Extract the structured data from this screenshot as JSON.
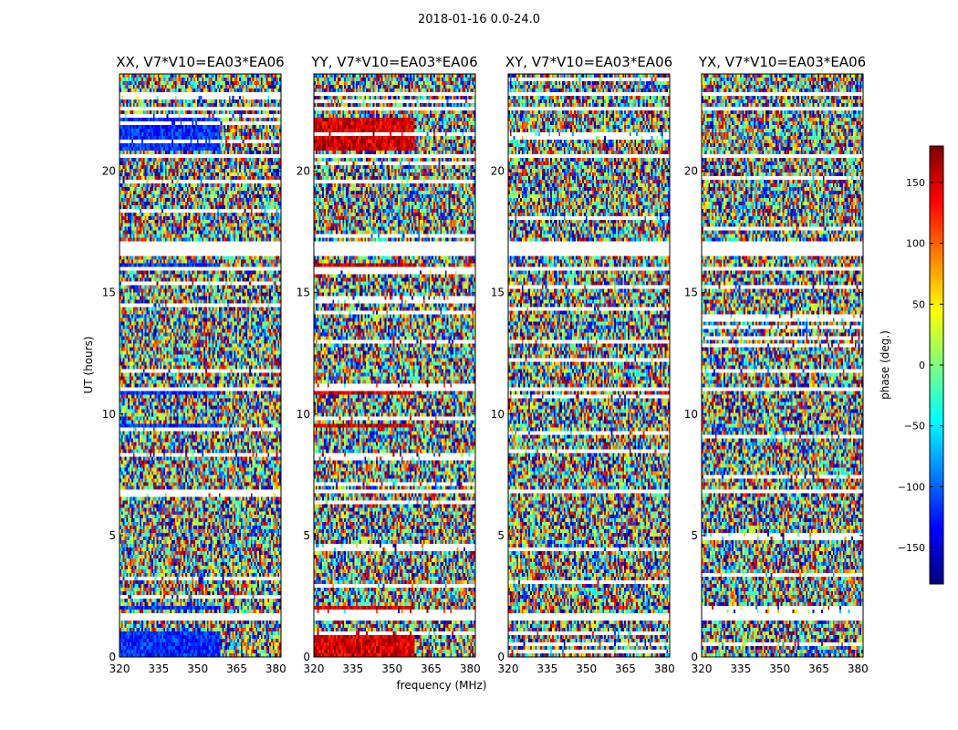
{
  "chart_data": {
    "type": "heatmap",
    "suptitle": "2018-01-16 0.0-24.0",
    "xlabel": "frequency (MHz)",
    "ylabel": "UT (hours)",
    "xlim": [
      320,
      382
    ],
    "ylim": [
      0,
      24
    ],
    "xticks": [
      320,
      335,
      350,
      365,
      380
    ],
    "yticks": [
      0,
      5,
      10,
      15,
      20
    ],
    "colorbar": {
      "label": "phase (deg.)",
      "range": [
        -180,
        180
      ],
      "ticks": [
        150,
        100,
        50,
        0,
        -50,
        -100,
        -150
      ],
      "colormap": "jet",
      "colors": [
        "#00007f",
        "#0000ff",
        "#007fff",
        "#00ffff",
        "#7fff7f",
        "#ffff00",
        "#ff7f00",
        "#ff0000",
        "#7f0000"
      ]
    },
    "panels": [
      {
        "title": "XX, V7*V10=EA03*EA06",
        "coherent_phase": -120,
        "show_ylabels": true
      },
      {
        "title": "YY, V7*V10=EA03*EA06",
        "coherent_phase": 150,
        "show_ylabels": true
      },
      {
        "title": "XY, V7*V10=EA03*EA06",
        "coherent_phase": null,
        "show_ylabels": true
      },
      {
        "title": "YX, V7*V10=EA03*EA06",
        "coherent_phase": null,
        "show_ylabels": true
      }
    ],
    "flagged_hours": [
      [
        1.45,
        1.85
      ],
      [
        2.08,
        2.14
      ],
      [
        6.75,
        6.85
      ],
      [
        10.9,
        11.05
      ],
      [
        15.85,
        16.0
      ],
      [
        16.55,
        17.1
      ],
      [
        20.5,
        20.65
      ],
      [
        22.45,
        22.7
      ],
      [
        23.05,
        23.3
      ]
    ],
    "coherent_hours": [
      [
        0.0,
        1.0
      ],
      [
        1.9,
        2.1
      ],
      [
        9.4,
        9.6
      ],
      [
        10.75,
        10.9
      ],
      [
        15.95,
        16.2
      ],
      [
        20.8,
        22.2
      ]
    ]
  }
}
